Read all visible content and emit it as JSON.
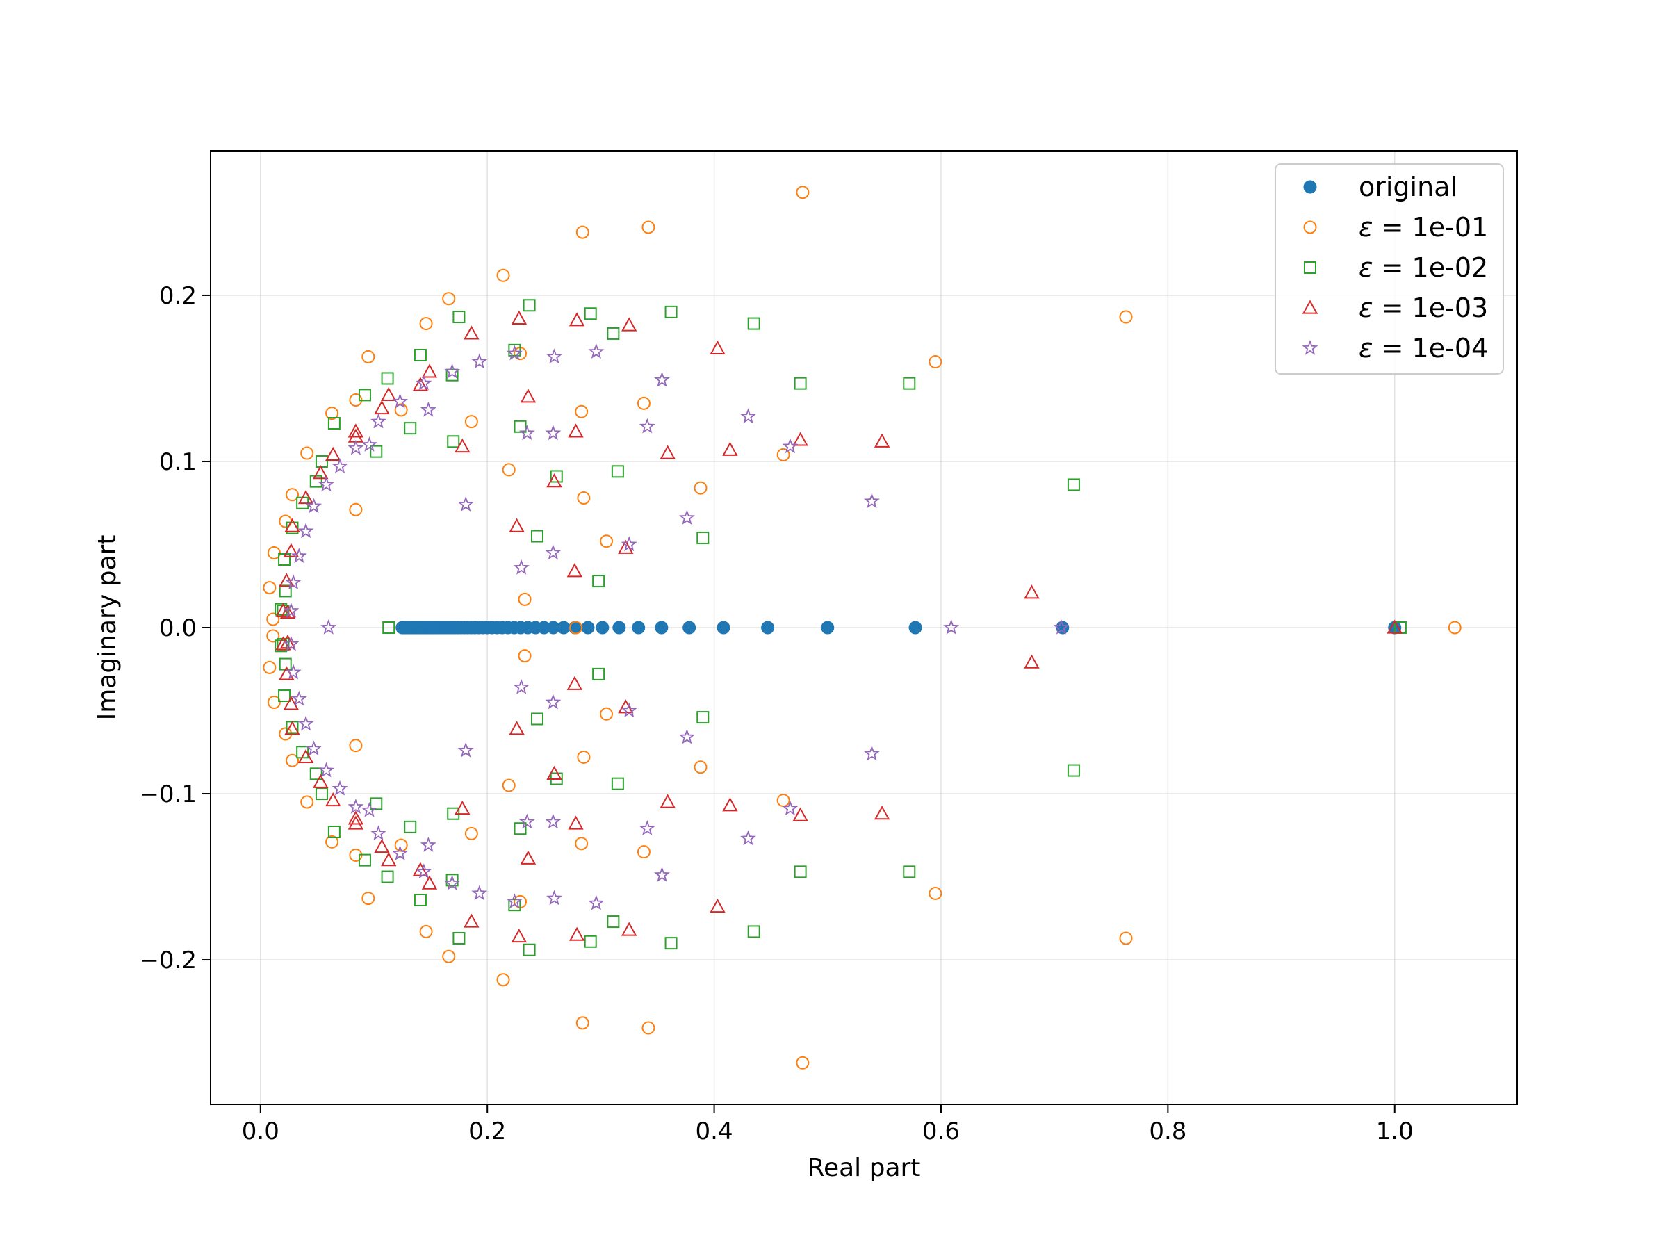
{
  "chart_data": {
    "type": "scatter",
    "xlabel": "Real part",
    "ylabel": "Imaginary part",
    "xlim": [
      -0.044,
      1.108
    ],
    "ylim": [
      -0.287,
      0.287
    ],
    "xticks": [
      0.0,
      0.2,
      0.4,
      0.6,
      0.8,
      1.0
    ],
    "xtick_labels": [
      "0.0",
      "0.2",
      "0.4",
      "0.6",
      "0.8",
      "1.0"
    ],
    "yticks": [
      -0.2,
      -0.1,
      0.0,
      0.1,
      0.2
    ],
    "ytick_labels": [
      "−0.2",
      "−0.1",
      "0.0",
      "0.1",
      "0.2"
    ],
    "grid": true,
    "legend_position": "top-right",
    "series": [
      {
        "name": "original",
        "legend_prefix": "",
        "legend_value": "original",
        "marker": "filled-circle",
        "color": "#1f77b4",
        "conjugate_symmetric": false,
        "points": [
          [
            1.0,
            0
          ],
          [
            0.7071,
            0
          ],
          [
            0.5774,
            0
          ],
          [
            0.5,
            0
          ],
          [
            0.4472,
            0
          ],
          [
            0.4082,
            0
          ],
          [
            0.378,
            0
          ],
          [
            0.3536,
            0
          ],
          [
            0.3333,
            0
          ],
          [
            0.3162,
            0
          ],
          [
            0.3015,
            0
          ],
          [
            0.2887,
            0
          ],
          [
            0.2774,
            0
          ],
          [
            0.2673,
            0
          ],
          [
            0.2582,
            0
          ],
          [
            0.25,
            0
          ],
          [
            0.2425,
            0
          ],
          [
            0.2357,
            0
          ],
          [
            0.2294,
            0
          ],
          [
            0.2236,
            0
          ],
          [
            0.2182,
            0
          ],
          [
            0.2132,
            0
          ],
          [
            0.2085,
            0
          ],
          [
            0.2041,
            0
          ],
          [
            0.2,
            0
          ],
          [
            0.1961,
            0
          ],
          [
            0.1925,
            0
          ],
          [
            0.189,
            0
          ],
          [
            0.1857,
            0
          ],
          [
            0.1826,
            0
          ],
          [
            0.1796,
            0
          ],
          [
            0.1768,
            0
          ],
          [
            0.1741,
            0
          ],
          [
            0.1715,
            0
          ],
          [
            0.169,
            0
          ],
          [
            0.1667,
            0
          ],
          [
            0.1644,
            0
          ],
          [
            0.1622,
            0
          ],
          [
            0.1601,
            0
          ],
          [
            0.1581,
            0
          ],
          [
            0.1562,
            0
          ],
          [
            0.1543,
            0
          ],
          [
            0.1525,
            0
          ],
          [
            0.1508,
            0
          ],
          [
            0.1491,
            0
          ],
          [
            0.1474,
            0
          ],
          [
            0.1459,
            0
          ],
          [
            0.1443,
            0
          ],
          [
            0.1429,
            0
          ],
          [
            0.1414,
            0
          ],
          [
            0.14,
            0
          ],
          [
            0.1387,
            0
          ],
          [
            0.1374,
            0
          ],
          [
            0.1361,
            0
          ],
          [
            0.1348,
            0
          ],
          [
            0.1336,
            0
          ],
          [
            0.1325,
            0
          ],
          [
            0.1313,
            0
          ],
          [
            0.1302,
            0
          ],
          [
            0.1291,
            0
          ],
          [
            0.1281,
            0
          ],
          [
            0.127,
            0
          ],
          [
            0.126,
            0
          ],
          [
            0.125,
            0
          ]
        ]
      },
      {
        "name": "eps=1e-01",
        "legend_prefix": "ε = ",
        "legend_value": "1e-01",
        "marker": "open-circle",
        "color": "#ff7f0e",
        "conjugate_symmetric": true,
        "points": [
          [
            1.053,
            0
          ],
          [
            0.763,
            0.187
          ],
          [
            0.595,
            0.16
          ],
          [
            0.478,
            0.262
          ],
          [
            0.461,
            0.104
          ],
          [
            0.388,
            0.084
          ],
          [
            0.342,
            0.241
          ],
          [
            0.338,
            0.135
          ],
          [
            0.305,
            0.052
          ],
          [
            0.284,
            0.238
          ],
          [
            0.283,
            0.13
          ],
          [
            0.285,
            0.078
          ],
          [
            0.278,
            0
          ],
          [
            0.233,
            0.017
          ],
          [
            0.229,
            0.165
          ],
          [
            0.219,
            0.095
          ],
          [
            0.214,
            0.212
          ],
          [
            0.166,
            0.198
          ],
          [
            0.186,
            0.124
          ],
          [
            0.146,
            0.183
          ],
          [
            0.124,
            0.131
          ],
          [
            0.095,
            0.163
          ],
          [
            0.084,
            0.137
          ],
          [
            0.084,
            0.071
          ],
          [
            0.063,
            0.129
          ],
          [
            0.041,
            0.105
          ],
          [
            0.028,
            0.08
          ],
          [
            0.022,
            0.064
          ],
          [
            0.012,
            0.045
          ],
          [
            0.008,
            0.024
          ],
          [
            0.011,
            0.005
          ]
        ]
      },
      {
        "name": "eps=1e-02",
        "legend_prefix": "ε = ",
        "legend_value": "1e-02",
        "marker": "open-square",
        "color": "#2ca02c",
        "conjugate_symmetric": true,
        "points": [
          [
            1.005,
            0
          ],
          [
            0.717,
            0.086
          ],
          [
            0.572,
            0.147
          ],
          [
            0.476,
            0.147
          ],
          [
            0.435,
            0.183
          ],
          [
            0.39,
            0.054
          ],
          [
            0.362,
            0.19
          ],
          [
            0.315,
            0.094
          ],
          [
            0.311,
            0.177
          ],
          [
            0.291,
            0.189
          ],
          [
            0.298,
            0.028
          ],
          [
            0.237,
            0.194
          ],
          [
            0.261,
            0.091
          ],
          [
            0.244,
            0.055
          ],
          [
            0.229,
            0.121
          ],
          [
            0.224,
            0.167
          ],
          [
            0.175,
            0.187
          ],
          [
            0.169,
            0.152
          ],
          [
            0.17,
            0.112
          ],
          [
            0.141,
            0.164
          ],
          [
            0.132,
            0.12
          ],
          [
            0.112,
            0.15
          ],
          [
            0.102,
            0.106
          ],
          [
            0.092,
            0.14
          ],
          [
            0.065,
            0.123
          ],
          [
            0.054,
            0.1
          ],
          [
            0.049,
            0.088
          ],
          [
            0.037,
            0.075
          ],
          [
            0.028,
            0.06
          ],
          [
            0.021,
            0.041
          ],
          [
            0.022,
            0.022
          ],
          [
            0.018,
            0.011
          ],
          [
            0.02,
            0.01
          ],
          [
            0.113,
            0
          ]
        ]
      },
      {
        "name": "eps=1e-03",
        "legend_prefix": "ε = ",
        "legend_value": "1e-03",
        "marker": "open-triangle",
        "color": "#d62728",
        "conjugate_symmetric": true,
        "points": [
          [
            1.0,
            0
          ],
          [
            0.68,
            0.021
          ],
          [
            0.548,
            0.112
          ],
          [
            0.476,
            0.113
          ],
          [
            0.414,
            0.107
          ],
          [
            0.403,
            0.168
          ],
          [
            0.359,
            0.105
          ],
          [
            0.325,
            0.182
          ],
          [
            0.322,
            0.048
          ],
          [
            0.279,
            0.185
          ],
          [
            0.278,
            0.118
          ],
          [
            0.277,
            0.034
          ],
          [
            0.236,
            0.139
          ],
          [
            0.259,
            0.088
          ],
          [
            0.228,
            0.186
          ],
          [
            0.226,
            0.061
          ],
          [
            0.186,
            0.177
          ],
          [
            0.178,
            0.109
          ],
          [
            0.149,
            0.154
          ],
          [
            0.141,
            0.146
          ],
          [
            0.113,
            0.14
          ],
          [
            0.107,
            0.132
          ],
          [
            0.084,
            0.118
          ],
          [
            0.084,
            0.115
          ],
          [
            0.064,
            0.104
          ],
          [
            0.053,
            0.093
          ],
          [
            0.04,
            0.078
          ],
          [
            0.028,
            0.061
          ],
          [
            0.027,
            0.046
          ],
          [
            0.023,
            0.028
          ],
          [
            0.02,
            0.01
          ],
          [
            0.024,
            0.009
          ]
        ]
      },
      {
        "name": "eps=1e-04",
        "legend_prefix": "ε = ",
        "legend_value": "1e-04",
        "marker": "open-star",
        "color": "#9467bd",
        "conjugate_symmetric": true,
        "points": [
          [
            0.706,
            0
          ],
          [
            0.609,
            0
          ],
          [
            0.539,
            0.076
          ],
          [
            0.467,
            0.109
          ],
          [
            0.43,
            0.127
          ],
          [
            0.376,
            0.066
          ],
          [
            0.354,
            0.149
          ],
          [
            0.341,
            0.121
          ],
          [
            0.325,
            0.05
          ],
          [
            0.296,
            0.166
          ],
          [
            0.259,
            0.163
          ],
          [
            0.258,
            0.117
          ],
          [
            0.258,
            0.045
          ],
          [
            0.235,
            0.117
          ],
          [
            0.23,
            0.036
          ],
          [
            0.224,
            0.165
          ],
          [
            0.181,
            0.074
          ],
          [
            0.193,
            0.16
          ],
          [
            0.169,
            0.154
          ],
          [
            0.148,
            0.131
          ],
          [
            0.144,
            0.147
          ],
          [
            0.123,
            0.136
          ],
          [
            0.104,
            0.124
          ],
          [
            0.096,
            0.11
          ],
          [
            0.084,
            0.108
          ],
          [
            0.07,
            0.097
          ],
          [
            0.058,
            0.086
          ],
          [
            0.047,
            0.073
          ],
          [
            0.04,
            0.058
          ],
          [
            0.034,
            0.043
          ],
          [
            0.029,
            0.027
          ],
          [
            0.027,
            0.01
          ],
          [
            0.06,
            0
          ]
        ]
      }
    ]
  }
}
